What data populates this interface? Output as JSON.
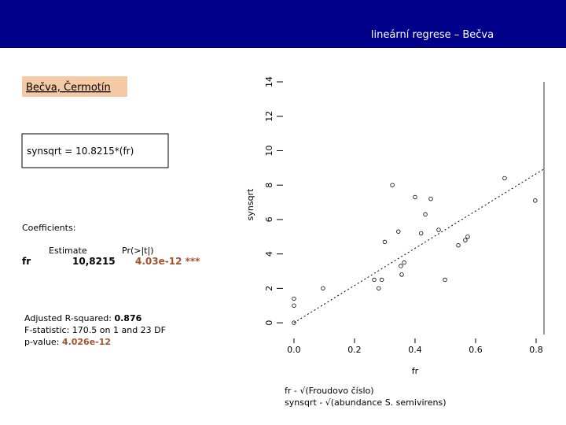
{
  "header": {
    "title": "lineární regrese – Bečva"
  },
  "location_box": "Bečva, Čermotín",
  "equation": "synsqrt = 10.8215*(fr)",
  "coefficients": {
    "heading": "Coefficients:",
    "columns": [
      "Estimate",
      "Pr(>|t|)"
    ],
    "row": {
      "name": "fr",
      "estimate": "10,8215",
      "p": "4.03e-12 ***"
    }
  },
  "statistics": {
    "r2_label": "Adjusted R-squared:",
    "r2": "0.876",
    "f": "F-statistic: 170.5 on 1 and 23 DF",
    "p_label": "p-value:",
    "p": "4.026e-12"
  },
  "notes": [
    "fr - √(Froudovo číslo)",
    "synsqrt - √(abundance S. semivirens)"
  ],
  "chart_data": {
    "type": "scatter",
    "xlabel": "fr",
    "ylabel": "synsqrt",
    "x": [
      0,
      0,
      0,
      0.096,
      0.28,
      0.265,
      0.29,
      0.3,
      0.325,
      0.345,
      0.356,
      0.353,
      0.364,
      0.4,
      0.42,
      0.434,
      0.452,
      0.478,
      0.499,
      0.543,
      0.566,
      0.574,
      0.696,
      0.797
    ],
    "y": [
      0,
      1.0,
      1.4,
      2.0,
      2.0,
      2.5,
      2.5,
      4.7,
      8.0,
      5.3,
      2.8,
      3.3,
      3.5,
      7.3,
      5.2,
      6.3,
      7.2,
      5.4,
      2.5,
      4.5,
      4.8,
      5.0,
      8.4,
      7.1
    ],
    "color": "#000000",
    "fit_slope": 10.8215,
    "xlim": [
      -0.031,
      0.826
    ],
    "ylim": [
      -0.68,
      14
    ],
    "xticks": [
      {
        "value": 0,
        "label": "0.0"
      },
      {
        "value": 0.2,
        "label": "0.2"
      },
      {
        "value": 0.4,
        "label": "0.4"
      },
      {
        "value": 0.6,
        "label": "0.6"
      },
      {
        "value": 0.8,
        "label": "0.8"
      }
    ],
    "yticks": [
      0,
      2,
      4,
      6,
      8,
      10,
      12,
      14
    ]
  }
}
